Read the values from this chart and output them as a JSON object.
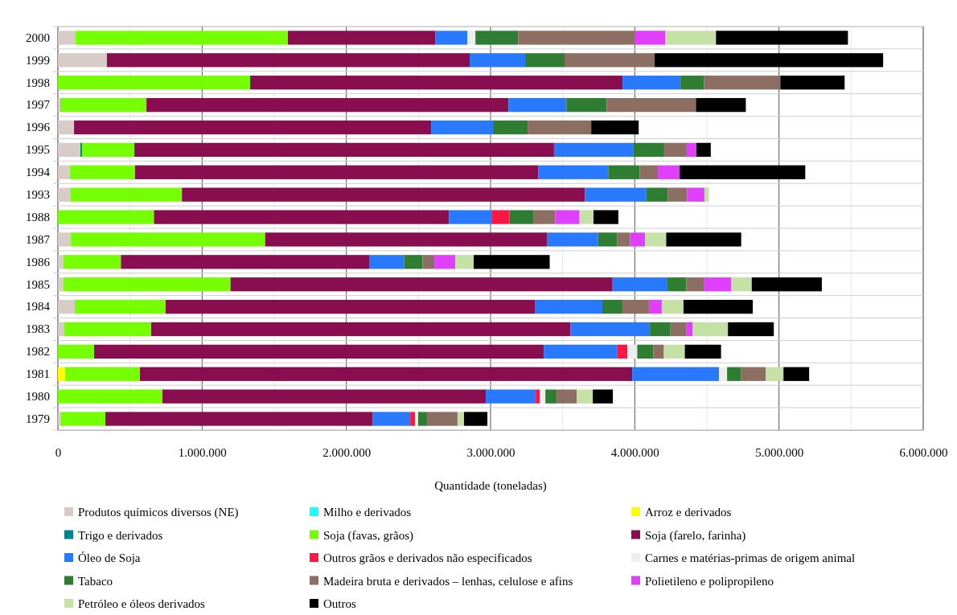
{
  "chart_data": {
    "type": "bar",
    "orientation": "horizontal",
    "stacked": true,
    "xlabel": "Quantidade (toneladas)",
    "categories": [
      "2000",
      "1999",
      "1998",
      "1997",
      "1996",
      "1995",
      "1994",
      "1993",
      "1988",
      "1987",
      "1986",
      "1985",
      "1984",
      "1983",
      "1982",
      "1981",
      "1980",
      "1979"
    ],
    "xlim": [
      0,
      6000000
    ],
    "xticks": [
      0,
      {
        "value": 500000,
        "label": null
      },
      {
        "value": 1000000,
        "label": "1.000.000"
      },
      {
        "value": 1500000,
        "label": null
      },
      {
        "value": 2000000,
        "label": "2.000.000"
      },
      {
        "value": 2500000,
        "label": null
      },
      {
        "value": 3000000,
        "label": "3.000.000"
      },
      {
        "value": 3500000,
        "label": null
      },
      {
        "value": 4000000,
        "label": "4.000.000"
      },
      {
        "value": 4500000,
        "label": null
      },
      {
        "value": 5000000,
        "label": "5.000.000"
      },
      {
        "value": 5500000,
        "label": null
      },
      {
        "value": 6000000,
        "label": "6.000.000"
      }
    ],
    "grid": "x",
    "legend": "bottom",
    "series": [
      {
        "name": "Produtos químicos diversos (NE)",
        "color": "#d7ccc8",
        "values": [
          123000,
          340000,
          0,
          17000,
          112000,
          156000,
          82000,
          86000,
          0,
          90000,
          37000,
          37000,
          117000,
          45000,
          0,
          0,
          0,
          22000
        ]
      },
      {
        "name": "Milho e derivados",
        "color": "#18ffff",
        "values": [
          0,
          0,
          0,
          0,
          0,
          0,
          0,
          0,
          0,
          0,
          0,
          0,
          0,
          0,
          0,
          0,
          0,
          0
        ]
      },
      {
        "name": "Arroz e derivados",
        "color": "#ffff00",
        "values": [
          0,
          0,
          0,
          0,
          0,
          0,
          0,
          0,
          0,
          0,
          0,
          0,
          0,
          0,
          0,
          50000,
          0,
          0
        ]
      },
      {
        "name": "Trigo e derivados",
        "color": "#00838f",
        "values": [
          0,
          0,
          0,
          0,
          0,
          11000,
          0,
          0,
          0,
          0,
          0,
          0,
          0,
          0,
          0,
          0,
          0,
          0
        ]
      },
      {
        "name": "Soja (favas, grãos)",
        "color": "#76ff03",
        "values": [
          1472000,
          0,
          1333000,
          597000,
          0,
          363000,
          453000,
          774000,
          666000,
          1347000,
          400000,
          1160000,
          630000,
          602000,
          251000,
          519000,
          725000,
          307000
        ]
      },
      {
        "name": "Soja (farelo, farinha)",
        "color": "#880e4f",
        "values": [
          1021000,
          2515000,
          2582000,
          2510000,
          2476000,
          2910000,
          2795000,
          2795000,
          2046000,
          1957000,
          1721000,
          2645000,
          2560000,
          2906000,
          3118000,
          3413000,
          2242000,
          1852000
        ]
      },
      {
        "name": "Óleo de Soja",
        "color": "#2979ff",
        "values": [
          223000,
          385000,
          402000,
          402000,
          429000,
          552000,
          486000,
          423000,
          299000,
          352000,
          243000,
          385000,
          468000,
          552000,
          508000,
          602000,
          346000,
          262000
        ]
      },
      {
        "name": "Outros grãos e derivados não especificados",
        "color": "#ff1744",
        "values": [
          0,
          0,
          0,
          0,
          0,
          0,
          0,
          0,
          120000,
          0,
          0,
          0,
          0,
          0,
          73000,
          0,
          28000,
          33000
        ]
      },
      {
        "name": "Carnes e matérias-primas de origem animal",
        "color": "#eeeeee",
        "values": [
          56000,
          0,
          0,
          0,
          0,
          0,
          0,
          0,
          0,
          0,
          0,
          0,
          0,
          0,
          67000,
          56000,
          39000,
          22000
        ]
      },
      {
        "name": "Tabaco",
        "color": "#2e7d32",
        "values": [
          296000,
          273000,
          162000,
          279000,
          240000,
          212000,
          217000,
          150000,
          165000,
          131000,
          127000,
          131000,
          139000,
          139000,
          112000,
          95000,
          78000,
          61000
        ]
      },
      {
        "name": "Madeira bruta e derivados – lenhas, celulose e afins",
        "color": "#8d6e63",
        "values": [
          809000,
          625000,
          530000,
          619000,
          441000,
          151000,
          127000,
          135000,
          153000,
          90000,
          82000,
          120000,
          184000,
          112000,
          73000,
          173000,
          139000,
          212000
        ]
      },
      {
        "name": "Polietileno e polipropileno",
        "color": "#e040fb",
        "values": [
          212000,
          0,
          0,
          0,
          0,
          72000,
          150000,
          120000,
          168000,
          105000,
          146000,
          191000,
          89000,
          45000,
          0,
          0,
          0,
          0
        ]
      },
      {
        "name": "Petróleo e óleos derivados",
        "color": "#c5e1a5",
        "values": [
          351000,
          0,
          0,
          0,
          0,
          0,
          0,
          30000,
          97000,
          146000,
          127000,
          142000,
          151000,
          245000,
          145000,
          123000,
          112000,
          45000
        ]
      },
      {
        "name": "Outros",
        "color": "#000000",
        "values": [
          915000,
          1584000,
          446000,
          346000,
          329000,
          100000,
          872000,
          0,
          172000,
          520000,
          527000,
          486000,
          480000,
          318000,
          251000,
          178000,
          139000,
          162000
        ]
      }
    ]
  }
}
